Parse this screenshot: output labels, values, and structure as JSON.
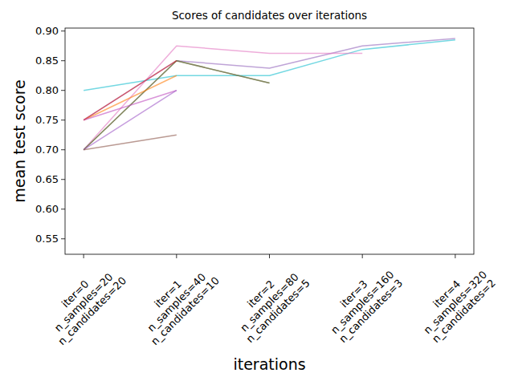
{
  "chart_data": {
    "type": "line",
    "title": "Scores of candidates over iterations",
    "x_label": "iterations",
    "y_label": "mean test score",
    "categories": [
      "iter=0\nn_samples=20\nn_candidates=20",
      "iter=1\nn_samples=40\nn_candidates=10",
      "iter=2\nn_samples=80\nn_candidates=5",
      "iter=3\nn_samples=160\nn_candidates=3",
      "iter=4\nn_samples=320\nn_candidates=2"
    ],
    "ylim": [
      0.524,
      0.905
    ],
    "yticks": [
      0.55,
      {
        "value": 0.6,
        "label": "0.60"
      },
      0.65,
      {
        "value": 0.7,
        "label": "0.70"
      },
      0.75,
      {
        "value": 0.8,
        "label": "0.80"
      },
      0.85,
      {
        "value": 0.9,
        "label": "0.90"
      }
    ],
    "grid": false,
    "series": [
      {
        "color": "#17becf",
        "values": [
          0.8,
          0.825,
          0.825,
          0.869,
          0.885
        ]
      },
      {
        "color": "#9467bd",
        "values": [
          0.75,
          0.85,
          0.8375,
          0.875,
          0.8875
        ]
      },
      {
        "color": "#e377c2",
        "values": [
          0.7,
          0.875,
          0.8625,
          0.8625,
          null
        ]
      },
      {
        "color": "#2ca02c",
        "values": [
          0.7,
          0.85,
          0.8125,
          null,
          null
        ]
      },
      {
        "color": "#8c564b",
        "values": [
          0.7,
          0.85,
          0.8125,
          null,
          null
        ]
      },
      {
        "color": "#ff7f0e",
        "values": [
          0.75,
          0.825,
          null,
          null,
          null
        ]
      },
      {
        "color": "#d62728",
        "values": [
          0.75,
          0.85,
          null,
          null,
          null
        ]
      },
      {
        "color": "#c04fc0",
        "values": [
          0.75,
          0.8,
          null,
          null,
          null
        ]
      },
      {
        "color": "#a05cc8",
        "values": [
          0.7,
          0.8,
          null,
          null,
          null
        ]
      },
      {
        "color": "#8c564b",
        "values": [
          0.7,
          0.725,
          null,
          null,
          null
        ]
      }
    ]
  }
}
